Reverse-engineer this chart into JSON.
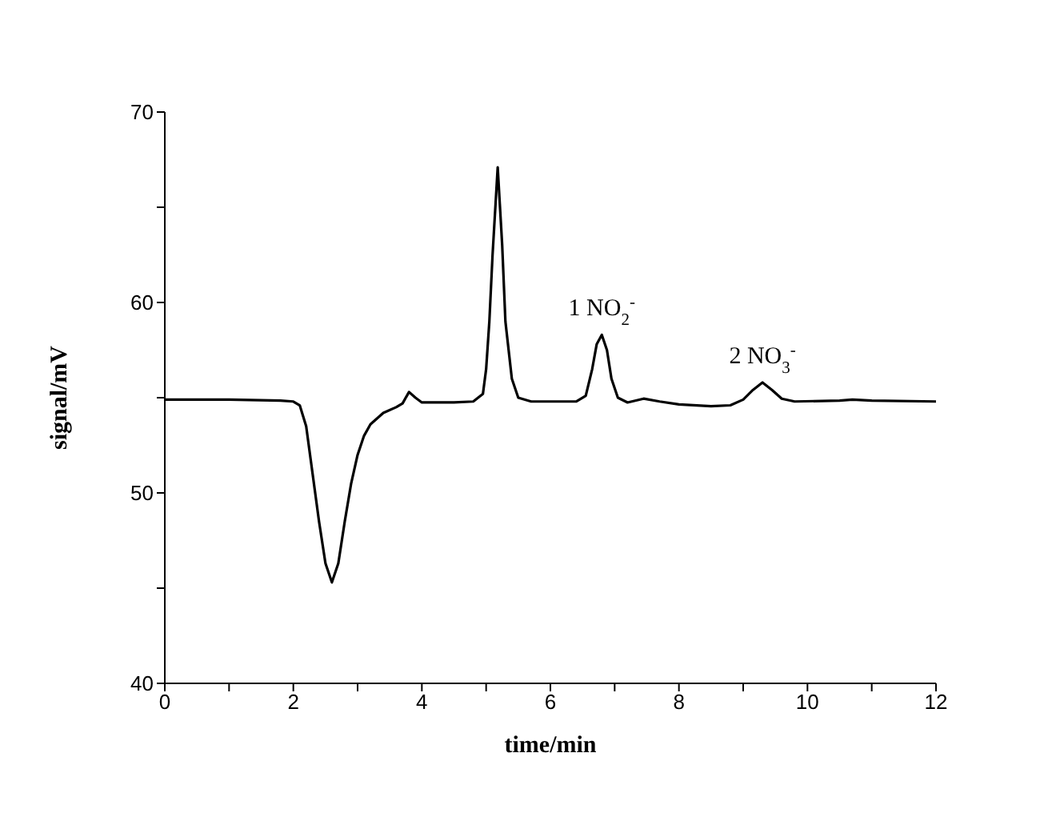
{
  "chart_data": {
    "type": "line",
    "xlabel": "time/min",
    "ylabel": "signal/mV",
    "x": [
      0,
      1,
      1.8,
      2.0,
      2.1,
      2.2,
      2.3,
      2.4,
      2.5,
      2.6,
      2.7,
      2.8,
      2.9,
      3.0,
      3.1,
      3.2,
      3.4,
      3.6,
      3.7,
      3.8,
      3.9,
      4.0,
      4.5,
      4.8,
      4.95,
      5.0,
      5.05,
      5.1,
      5.18,
      5.25,
      5.3,
      5.4,
      5.5,
      5.7,
      6.4,
      6.55,
      6.65,
      6.72,
      6.8,
      6.88,
      6.95,
      7.05,
      7.2,
      7.45,
      7.7,
      8.0,
      8.5,
      8.8,
      9.0,
      9.15,
      9.3,
      9.45,
      9.6,
      9.8,
      10.5,
      10.7,
      11,
      12
    ],
    "series": [
      {
        "color": "#000000",
        "values": [
          54.9,
          54.9,
          54.85,
          54.8,
          54.6,
          53.5,
          51,
          48.5,
          46.3,
          45.3,
          46.3,
          48.5,
          50.5,
          52,
          53,
          53.6,
          54.2,
          54.5,
          54.7,
          55.3,
          55.0,
          54.75,
          54.75,
          54.8,
          55.2,
          56.5,
          59,
          62.5,
          67.1,
          63,
          59,
          56,
          55,
          54.8,
          54.8,
          55.1,
          56.5,
          57.8,
          58.3,
          57.5,
          56,
          55,
          54.75,
          54.95,
          54.8,
          54.65,
          54.55,
          54.6,
          54.9,
          55.4,
          55.8,
          55.4,
          54.95,
          54.8,
          54.85,
          54.9,
          54.85,
          54.8
        ]
      }
    ],
    "xlim": [
      0,
      12
    ],
    "xticks": [
      0,
      {
        "value": 1,
        "label": null
      },
      2,
      {
        "value": 3,
        "label": null
      },
      4,
      {
        "value": 5,
        "label": null
      },
      6,
      {
        "value": 7,
        "label": null
      },
      8,
      {
        "value": 9,
        "label": null
      },
      10,
      {
        "value": 11,
        "label": null
      },
      12
    ],
    "ylim": [
      40,
      70
    ],
    "yticks": [
      40,
      {
        "value": 45,
        "label": null
      },
      50,
      {
        "value": 55,
        "label": null
      },
      60,
      {
        "value": 65,
        "label": null
      },
      70
    ],
    "annotations": [
      {
        "text": "1 NO$_{2}$$^{-}$",
        "x": 6.8,
        "y": 58.3
      },
      {
        "text": "2 NO$_{3}$$^{-}$",
        "x": 9.3,
        "y": 55.8
      }
    ],
    "grid": false,
    "legend": false,
    "marker": "none",
    "line_style": "solid"
  }
}
